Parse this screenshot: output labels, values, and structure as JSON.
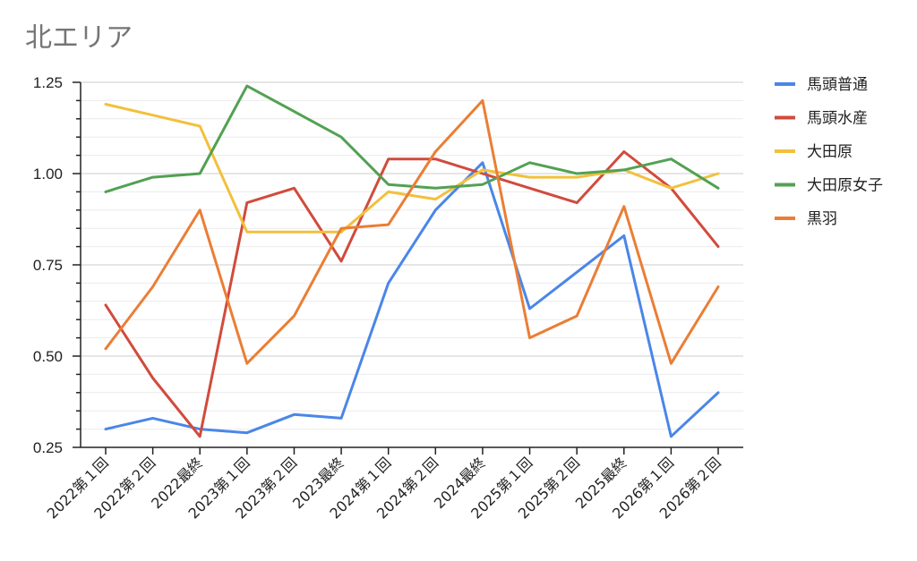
{
  "chart_data": {
    "type": "line",
    "title": "北エリア",
    "xlabel": "",
    "ylabel": "",
    "categories": [
      "2022第１回",
      "2022第２回",
      "2022最終",
      "2023第１回",
      "2023第２回",
      "2023最終",
      "2024第１回",
      "2024第２回",
      "2024最終",
      "2025第１回",
      "2025第２回",
      "2025最終",
      "2026第１回",
      "2026第２回"
    ],
    "ylim": [
      0.25,
      1.25
    ],
    "yticks": [
      "0.25",
      "0.50",
      "0.75",
      "1.00",
      "1.25"
    ],
    "grid": true,
    "legend_position": "right",
    "series": [
      {
        "name": "馬頭普通",
        "color": "#4a86e8",
        "values": [
          0.3,
          0.33,
          0.3,
          0.29,
          0.34,
          0.33,
          0.7,
          0.9,
          1.03,
          0.63,
          0.73,
          0.83,
          0.28,
          0.4
        ]
      },
      {
        "name": "馬頭水産",
        "color": "#d14b3c",
        "values": [
          0.64,
          0.44,
          0.28,
          0.92,
          0.96,
          0.76,
          1.04,
          1.04,
          1.0,
          0.96,
          0.92,
          1.06,
          0.96,
          0.8
        ]
      },
      {
        "name": "大田原",
        "color": "#f2c03c",
        "values": [
          1.19,
          1.16,
          1.13,
          0.84,
          0.84,
          0.84,
          0.95,
          0.93,
          1.01,
          0.99,
          0.99,
          1.01,
          0.96,
          1.0
        ]
      },
      {
        "name": "大田原女子",
        "color": "#52a153",
        "values": [
          0.95,
          0.99,
          1.0,
          1.24,
          1.17,
          1.1,
          0.97,
          0.96,
          0.97,
          1.03,
          1.0,
          1.01,
          1.04,
          0.96
        ]
      },
      {
        "name": "黒羽",
        "color": "#ea7e35",
        "values": [
          0.52,
          0.69,
          0.9,
          0.48,
          0.61,
          0.85,
          0.86,
          1.06,
          1.2,
          0.55,
          0.61,
          0.91,
          0.48,
          0.69
        ]
      }
    ]
  }
}
